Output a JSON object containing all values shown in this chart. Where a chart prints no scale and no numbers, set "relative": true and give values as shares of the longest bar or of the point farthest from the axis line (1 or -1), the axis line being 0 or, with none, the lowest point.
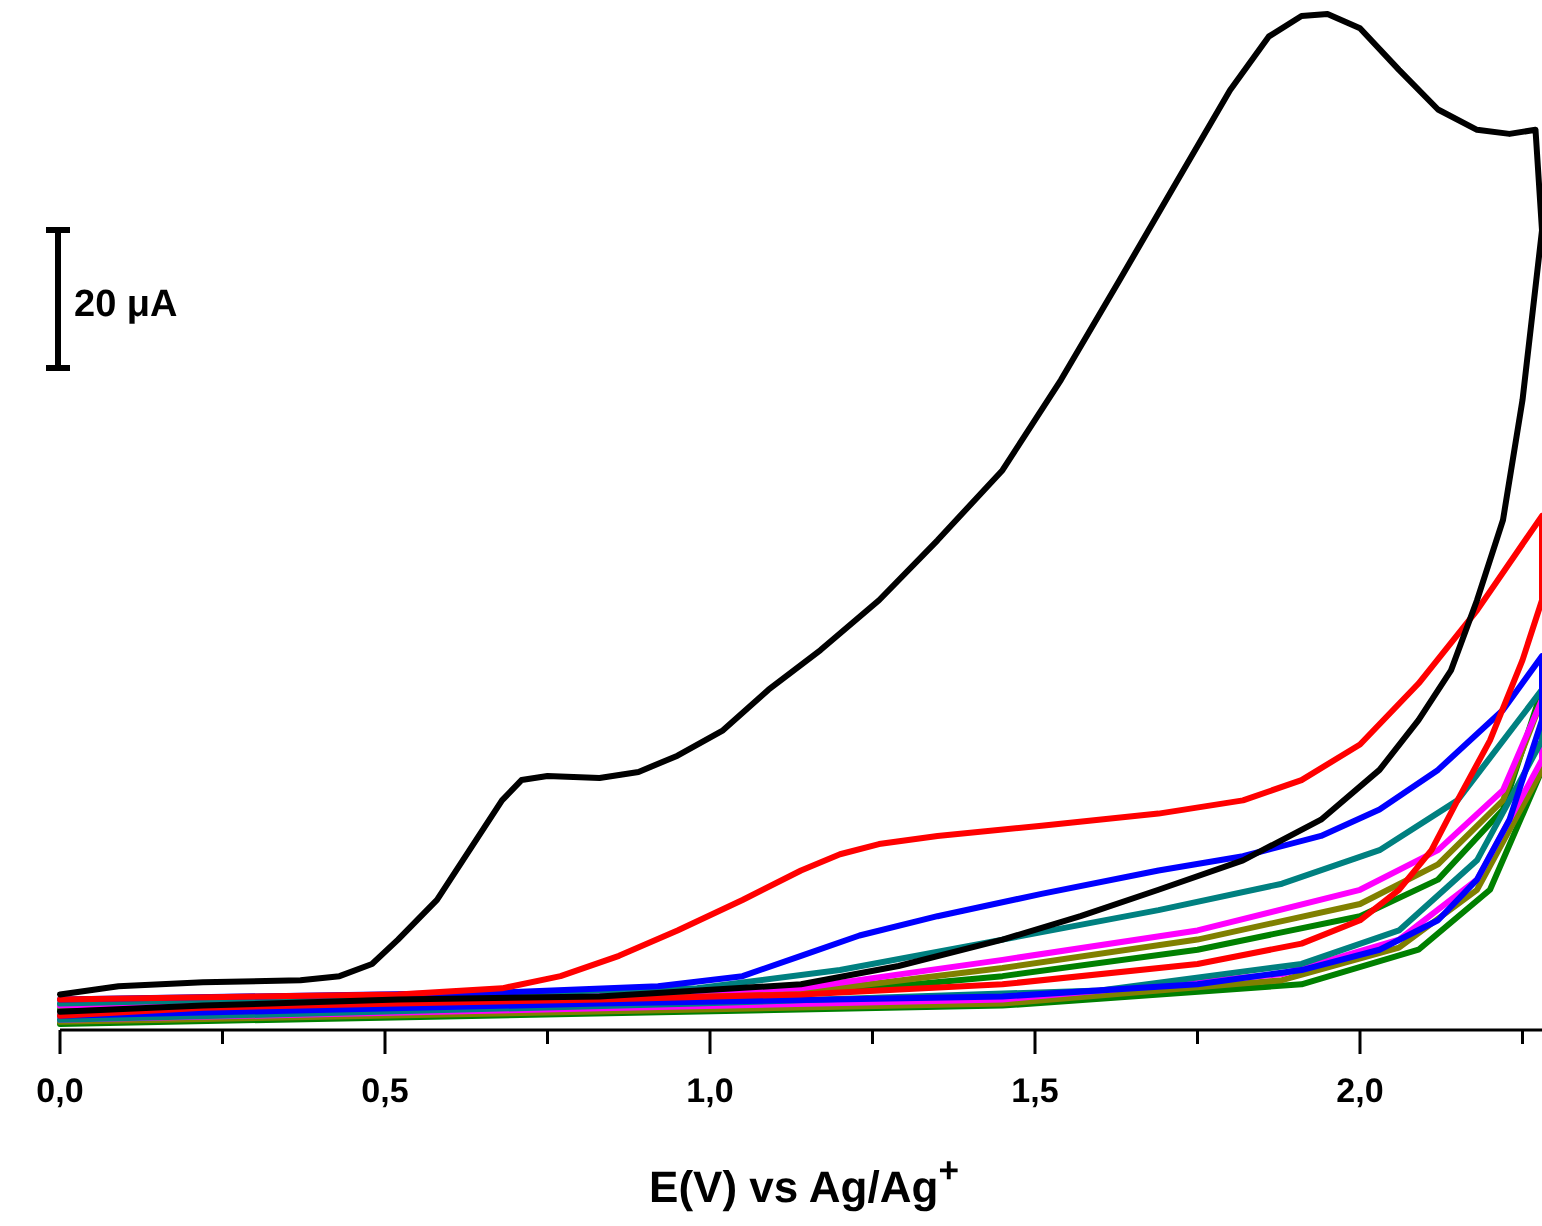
{
  "chart_data": {
    "type": "line",
    "relative": true,
    "xlabel": "E(V) vs Ag/Ag$^{+}$",
    "annotations": [
      "20 μA"
    ],
    "xlim": [
      0,
      2.28
    ],
    "xticks": [
      {
        "value": 0,
        "label": "0,0"
      },
      {
        "value": 0.25,
        "label": null
      },
      {
        "value": 0.5,
        "label": "0,5"
      },
      {
        "value": 0.75,
        "label": null
      },
      {
        "value": 1,
        "label": "1,0"
      },
      {
        "value": 1.25,
        "label": null
      },
      {
        "value": 1.5,
        "label": "1,5"
      },
      {
        "value": 1.75,
        "label": null
      },
      {
        "value": 2,
        "label": "2,0"
      },
      {
        "value": 2.25,
        "label": null
      }
    ],
    "tick_labels": "x",
    "line_style": "solid",
    "marker": "none",
    "series": [
      {
        "color": "#008000",
        "x": [
          0,
          1.14,
          1.45,
          1.75,
          2.0,
          2.12,
          2.22,
          2.28,
          2.28,
          2.2,
          2.09,
          1.91,
          1.45,
          0
        ],
        "values": [
          0.02,
          0.035,
          0.053,
          0.079,
          0.112,
          0.148,
          0.217,
          0.335,
          0.256,
          0.138,
          0.079,
          0.045,
          0.024,
          0.006
        ]
      },
      {
        "color": "#808000",
        "x": [
          0,
          1.14,
          1.45,
          1.75,
          2.0,
          2.12,
          2.22,
          2.28,
          2.28,
          2.18,
          2.06,
          1.88,
          1.45,
          0
        ],
        "values": [
          0.024,
          0.037,
          0.061,
          0.089,
          0.124,
          0.163,
          0.226,
          0.325,
          0.256,
          0.138,
          0.081,
          0.049,
          0.026,
          0.008
        ]
      },
      {
        "color": "#ff00ff",
        "x": [
          0,
          1.14,
          1.45,
          1.75,
          2.0,
          2.12,
          2.22,
          2.28,
          2.28,
          2.18,
          2.06,
          1.88,
          1.45,
          0
        ],
        "values": [
          0.024,
          0.041,
          0.069,
          0.098,
          0.138,
          0.177,
          0.236,
          0.325,
          0.266,
          0.148,
          0.089,
          0.055,
          0.03,
          0.01
        ]
      },
      {
        "color": "#008080",
        "x": [
          0,
          0.98,
          1.2,
          1.45,
          1.69,
          1.88,
          2.03,
          2.15,
          2.28,
          2.28,
          2.18,
          2.06,
          1.91,
          1.6,
          0.98,
          0
        ],
        "values": [
          0.026,
          0.041,
          0.059,
          0.089,
          0.118,
          0.144,
          0.177,
          0.226,
          0.335,
          0.285,
          0.167,
          0.098,
          0.065,
          0.039,
          0.026,
          0.01
        ]
      },
      {
        "color": "#0000ff",
        "x": [
          0,
          0.68,
          0.92,
          1.05,
          1.14,
          1.23,
          1.35,
          1.51,
          1.69,
          1.82,
          1.94,
          2.03,
          2.12,
          2.22,
          2.28,
          2.28,
          2.23,
          2.18,
          2.12,
          2.03,
          1.91,
          1.75,
          1.45,
          0.83,
          0
        ],
        "values": [
          0.03,
          0.037,
          0.043,
          0.053,
          0.073,
          0.093,
          0.112,
          0.134,
          0.157,
          0.171,
          0.191,
          0.217,
          0.256,
          0.315,
          0.368,
          0.305,
          0.207,
          0.148,
          0.108,
          0.079,
          0.059,
          0.045,
          0.033,
          0.026,
          0.014
        ]
      },
      {
        "color": "#ff0000",
        "x": [
          0,
          0.52,
          0.68,
          0.77,
          0.86,
          0.95,
          1.05,
          1.14,
          1.2,
          1.26,
          1.35,
          1.51,
          1.69,
          1.82,
          1.91,
          2.0,
          2.09,
          2.18,
          2.28,
          2.28,
          2.25,
          2.2,
          2.15,
          2.11,
          2.06,
          2.0,
          1.91,
          1.75,
          1.45,
          1.14,
          0.83,
          0.52,
          0.22,
          0
        ],
        "values": [
          0.03,
          0.035,
          0.041,
          0.053,
          0.073,
          0.098,
          0.128,
          0.157,
          0.173,
          0.183,
          0.191,
          0.201,
          0.213,
          0.226,
          0.246,
          0.281,
          0.341,
          0.413,
          0.506,
          0.423,
          0.364,
          0.285,
          0.226,
          0.177,
          0.138,
          0.108,
          0.085,
          0.065,
          0.045,
          0.035,
          0.03,
          0.026,
          0.022,
          0.014
        ]
      },
      {
        "color": "#000000",
        "x": [
          0,
          0.09,
          0.22,
          0.37,
          0.43,
          0.48,
          0.52,
          0.58,
          0.63,
          0.68,
          0.71,
          0.75,
          0.83,
          0.89,
          0.95,
          1.02,
          1.09,
          1.17,
          1.26,
          1.35,
          1.45,
          1.54,
          1.63,
          1.72,
          1.8,
          1.86,
          1.91,
          1.95,
          2.0,
          2.06,
          2.12,
          2.18,
          2.23,
          2.27,
          2.28,
          2.25,
          2.22,
          2.18,
          2.14,
          2.09,
          2.03,
          1.94,
          1.82,
          1.69,
          1.57,
          1.45,
          1.29,
          1.14,
          0.83,
          0.52,
          0.22,
          0
        ],
        "values": [
          0.035,
          0.043,
          0.047,
          0.049,
          0.053,
          0.065,
          0.089,
          0.128,
          0.177,
          0.226,
          0.246,
          0.25,
          0.248,
          0.254,
          0.27,
          0.295,
          0.335,
          0.374,
          0.423,
          0.482,
          0.551,
          0.64,
          0.738,
          0.837,
          0.925,
          0.978,
          0.998,
          1,
          0.986,
          0.945,
          0.906,
          0.886,
          0.882,
          0.886,
          0.787,
          0.62,
          0.502,
          0.423,
          0.354,
          0.305,
          0.256,
          0.207,
          0.167,
          0.138,
          0.112,
          0.089,
          0.063,
          0.045,
          0.033,
          0.03,
          0.024,
          0.018
        ]
      }
    ]
  }
}
